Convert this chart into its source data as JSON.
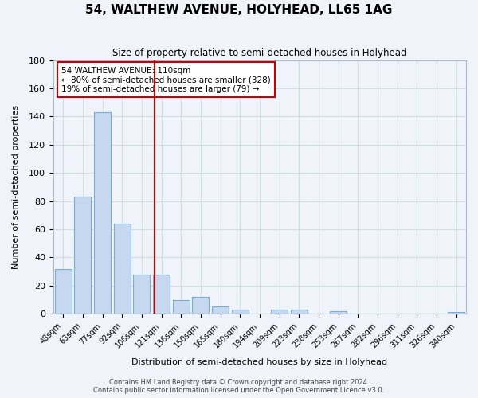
{
  "title": "54, WALTHEW AVENUE, HOLYHEAD, LL65 1AG",
  "subtitle": "Size of property relative to semi-detached houses in Holyhead",
  "xlabel": "Distribution of semi-detached houses by size in Holyhead",
  "ylabel": "Number of semi-detached properties",
  "bin_labels": [
    "48sqm",
    "63sqm",
    "77sqm",
    "92sqm",
    "106sqm",
    "121sqm",
    "136sqm",
    "150sqm",
    "165sqm",
    "180sqm",
    "194sqm",
    "209sqm",
    "223sqm",
    "238sqm",
    "253sqm",
    "267sqm",
    "282sqm",
    "296sqm",
    "311sqm",
    "326sqm",
    "340sqm"
  ],
  "bar_heights": [
    32,
    83,
    143,
    64,
    28,
    28,
    10,
    12,
    5,
    3,
    0,
    3,
    3,
    0,
    2,
    0,
    0,
    0,
    0,
    0,
    1
  ],
  "bar_color": "#c5d8f0",
  "bar_edgecolor": "#7aadd4",
  "vline_x": 4.67,
  "vline_color": "#cc0000",
  "annotation_box_text": "54 WALTHEW AVENUE: 110sqm\n← 80% of semi-detached houses are smaller (328)\n19% of semi-detached houses are larger (79) →",
  "annotation_box_color": "#cc0000",
  "ylim": [
    0,
    180
  ],
  "yticks": [
    0,
    20,
    40,
    60,
    80,
    100,
    120,
    140,
    160,
    180
  ],
  "footer_text": "Contains HM Land Registry data © Crown copyright and database right 2024.\nContains public sector information licensed under the Open Government Licence v3.0.",
  "grid_color": "#d0dce8",
  "background_color": "#f0f4fa"
}
